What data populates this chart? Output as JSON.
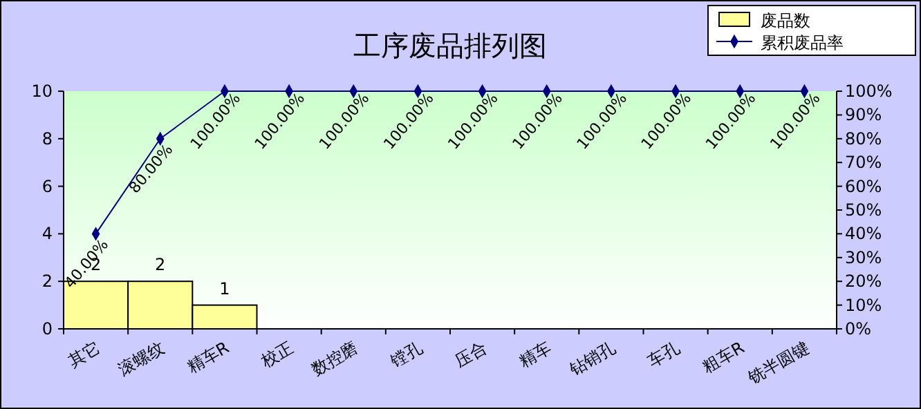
{
  "chart_data": {
    "type": "bar",
    "title": "工序废品排列图",
    "categories": [
      "其它",
      "滚螺纹",
      "精车R",
      "校正",
      "数控磨",
      "镗孔",
      "压合",
      "精车",
      "钻销孔",
      "车孔",
      "粗车R",
      "铣半圆键"
    ],
    "series": [
      {
        "name": "废品数",
        "color": "#ffff99",
        "values": [
          2,
          2,
          1,
          0,
          0,
          0,
          0,
          0,
          0,
          0,
          0,
          0
        ],
        "value_labels": [
          "2",
          "2",
          "1",
          null,
          null,
          null,
          null,
          null,
          null,
          null,
          null,
          null
        ]
      },
      {
        "name": "累积废品率",
        "type": "line",
        "axis": "y2",
        "color": "#000080",
        "marker": "diamond",
        "values": [
          40,
          80,
          100,
          100,
          100,
          100,
          100,
          100,
          100,
          100,
          100,
          100
        ],
        "value_labels": [
          "40.00%",
          "80.00%",
          "100.00%",
          "100.00%",
          "100.00%",
          "100.00%",
          "100.00%",
          "100.00%",
          "100.00%",
          "100.00%",
          "100.00%",
          "100.00%"
        ]
      }
    ],
    "ylim": [
      0,
      10
    ],
    "yticks": [
      0,
      2,
      4,
      6,
      8,
      10
    ],
    "y2lim": [
      0,
      100
    ],
    "y2ticks": [
      {
        "value": 0,
        "label": "0%"
      },
      {
        "value": 10,
        "label": "10%"
      },
      {
        "value": 20,
        "label": "20%"
      },
      {
        "value": 30,
        "label": "30%"
      },
      {
        "value": 40,
        "label": "40%"
      },
      {
        "value": 50,
        "label": "50%"
      },
      {
        "value": 60,
        "label": "60%"
      },
      {
        "value": 70,
        "label": "70%"
      },
      {
        "value": 80,
        "label": "80%"
      },
      {
        "value": 90,
        "label": "90%"
      },
      {
        "value": 100,
        "label": "100%"
      }
    ],
    "legend": "top right",
    "grid": false
  }
}
